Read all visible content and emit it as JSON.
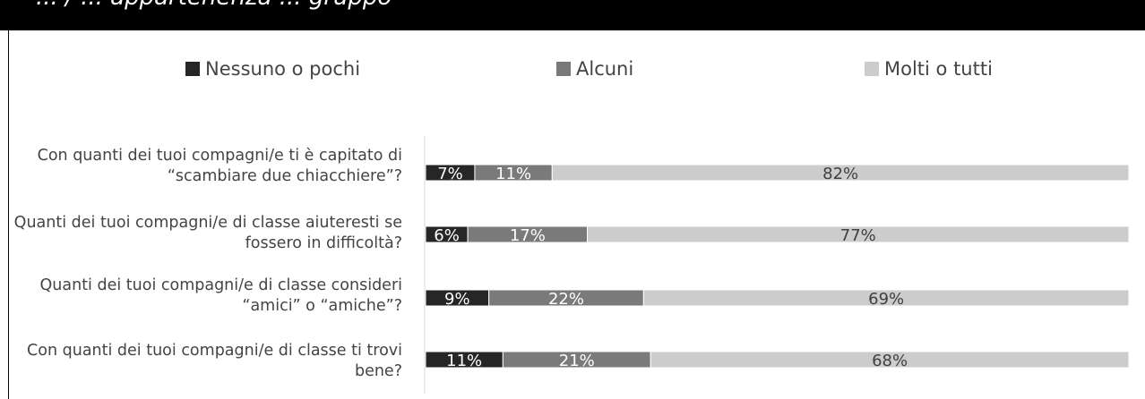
{
  "header": {
    "title_fragment": "... / ... appartenenza ... gruppo"
  },
  "chart_data": {
    "type": "bar",
    "orientation": "horizontal",
    "stacked": true,
    "percent_stacked": true,
    "categories": [
      "Con quanti dei tuoi compagni/e ti è capitato di “scambiare due chiacchiere”?",
      "Quanti dei tuoi compagni/e di classe aiuteresti se fossero in difficoltà?",
      "Quanti dei tuoi compagni/e di classe consideri “amici” o “amiche”?",
      "Con quanti dei tuoi compagni/e di classe ti trovi bene?"
    ],
    "series": [
      {
        "name": "Nessuno o pochi",
        "color": "#262626",
        "values": [
          7,
          6,
          9,
          11
        ],
        "labels": [
          "7%",
          "6%",
          "9%",
          "11%"
        ]
      },
      {
        "name": "Alcuni",
        "color": "#7a7a7a",
        "values": [
          11,
          17,
          22,
          21
        ],
        "labels": [
          "11%",
          "17%",
          "22%",
          "21%"
        ]
      },
      {
        "name": "Molti o tutti",
        "color": "#cccccc",
        "values": [
          82,
          77,
          69,
          68
        ],
        "labels": [
          "82%",
          "77%",
          "69%",
          "68%"
        ]
      }
    ],
    "xlim": [
      0,
      100
    ],
    "legend_position": "top",
    "grid": false
  }
}
